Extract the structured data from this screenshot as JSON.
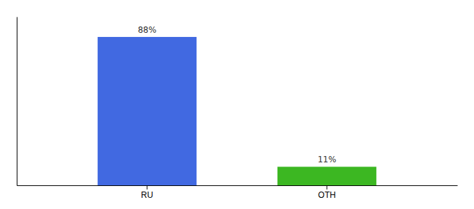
{
  "chart_data": {
    "type": "bar",
    "categories": [
      "RU",
      "OTH"
    ],
    "values": [
      88,
      11
    ],
    "value_labels": [
      "88%",
      "11%"
    ],
    "colors": [
      "#4169E1",
      "#3CB722"
    ],
    "ylim": [
      0,
      100
    ],
    "data_labels": true,
    "tick_labels": "x"
  }
}
